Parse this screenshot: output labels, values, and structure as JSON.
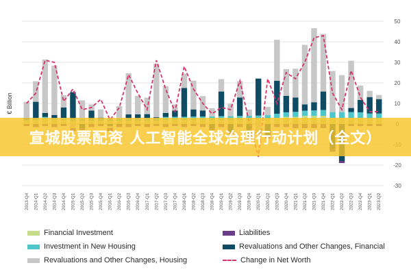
{
  "banner": {
    "text": "宣城股票配资 人工智能全球治理行动计划（全文）"
  },
  "colors": {
    "financial_investment": "#c5dc8a",
    "new_housing": "#4fc6c9",
    "reval_housing": "#c7c7c7",
    "liabilities": "#6a3d8a",
    "reval_financial": "#0f4c64",
    "net_worth": "#d6336c",
    "grid": "#e6e6e6",
    "axis_text": "#555555"
  },
  "chart_data": {
    "type": "bar",
    "ylabel": "€ Billion",
    "ylim": [
      -30,
      50
    ],
    "yticks": [
      -30,
      -20,
      -10,
      0,
      10,
      20,
      30,
      40,
      50
    ],
    "categories": [
      "2013-Q4",
      "2014-Q1",
      "2014-Q2",
      "2014-Q3",
      "2014-Q4",
      "2015-Q1",
      "2015-Q2",
      "2015-Q3",
      "2015-Q4",
      "2016-Q1",
      "2016-Q2",
      "2016-Q3",
      "2016-Q4",
      "2017-Q1",
      "2017-Q2",
      "2017-Q3",
      "2017-Q4",
      "2018-Q1",
      "2018-Q2",
      "2018-Q3",
      "2018-Q4",
      "2019-Q1",
      "2019-Q2",
      "2019-Q3",
      "2019-Q4",
      "2020-Q1",
      "2020-Q2",
      "2020-Q3",
      "2020-Q4",
      "2021-Q1",
      "2021-Q2",
      "2021-Q3",
      "2021-Q4",
      "2022-Q1",
      "2022-Q2",
      "2022-Q3",
      "2022-Q4",
      "2023-Q1",
      "2023-Q2"
    ],
    "series": [
      {
        "name": "Financial Investment",
        "values": [
          1.5,
          2,
          2.5,
          2,
          2,
          1.5,
          1.5,
          1.5,
          1.5,
          1.5,
          1.5,
          1.5,
          1.5,
          1.5,
          1.5,
          2,
          2,
          2,
          2,
          2,
          2,
          2,
          2,
          2,
          2,
          2.5,
          2.5,
          3,
          3.5,
          3.5,
          4,
          4,
          4,
          3,
          3,
          3,
          3,
          2.5,
          2.5
        ]
      },
      {
        "name": "Investment in New Housing",
        "values": [
          0.8,
          0.8,
          0.9,
          0.9,
          1,
          1,
          1,
          1,
          1.1,
          1.1,
          1.2,
          1.2,
          1.2,
          1.3,
          1.3,
          1.4,
          1.5,
          1.5,
          1.6,
          1.6,
          1.7,
          1.8,
          1.8,
          1.9,
          2,
          1.6,
          1.8,
          2,
          2.2,
          2.4,
          2.5,
          2.6,
          2.8,
          2.8,
          2.8,
          2.8,
          2.7,
          2.6,
          2.6
        ]
      },
      {
        "name": "Revaluations and Other Changes, Housing",
        "values": [
          8,
          10,
          26,
          24,
          6,
          -2,
          9,
          3,
          4,
          -1,
          6,
          20,
          9,
          8,
          26,
          13,
          3,
          7,
          14,
          7,
          4,
          6,
          6,
          8,
          3,
          -4,
          4,
          20,
          13,
          14,
          29,
          36,
          28,
          20,
          18,
          23,
          7,
          3,
          2
        ]
      },
      {
        "name": "Liabilities",
        "values": [
          -1,
          -1.5,
          -1,
          -1.5,
          -1,
          -1.5,
          -1,
          -1.5,
          -1,
          -1.5,
          -1,
          -1.5,
          -1,
          -1.5,
          -1,
          -1.5,
          -1,
          -1.5,
          -1,
          -1.5,
          -1,
          -1.5,
          -1,
          -1.5,
          -1,
          -1,
          -1,
          -1.5,
          -1.5,
          -2,
          -2,
          -2,
          -2,
          -1.5,
          -1,
          -1,
          -1,
          -1,
          -1
        ]
      },
      {
        "name": "Revaluations and Other Changes, Financial",
        "values": [
          0.5,
          8,
          2,
          1.5,
          5,
          13,
          -2,
          4,
          0.5,
          -1,
          -0.5,
          2,
          2,
          2,
          0.5,
          2,
          3,
          14,
          3.5,
          3,
          -2,
          12,
          -4,
          9,
          -7,
          18,
          -6,
          16,
          8,
          7,
          3,
          4,
          9,
          -12,
          -18,
          2,
          6,
          8,
          7
        ]
      }
    ],
    "net_worth": {
      "name": "Change in Net Worth",
      "values": [
        10,
        15,
        31,
        30,
        11,
        17,
        7,
        8,
        12,
        2,
        8,
        24,
        15,
        7,
        31,
        17,
        6,
        28,
        17,
        10,
        5,
        8,
        7,
        21,
        1,
        -16,
        22,
        10,
        25,
        22,
        30,
        42,
        43,
        15,
        7,
        26,
        13,
        6,
        6
      ]
    }
  },
  "legend": {
    "items": [
      {
        "label": "Financial Investment",
        "kind": "box",
        "color": "#c5dc8a"
      },
      {
        "label": "Investment in New Housing",
        "kind": "box",
        "color": "#4fc6c9"
      },
      {
        "label": "Revaluations and Other Changes, Housing",
        "kind": "box",
        "color": "#c7c7c7"
      },
      {
        "label": "Liabilities",
        "kind": "box",
        "color": "#6a3d8a"
      },
      {
        "label": "Revaluations and Other Changes, Financial",
        "kind": "box",
        "color": "#0f4c64"
      },
      {
        "label": "Change in Net Worth",
        "kind": "dash",
        "color": "#d6336c"
      }
    ]
  }
}
